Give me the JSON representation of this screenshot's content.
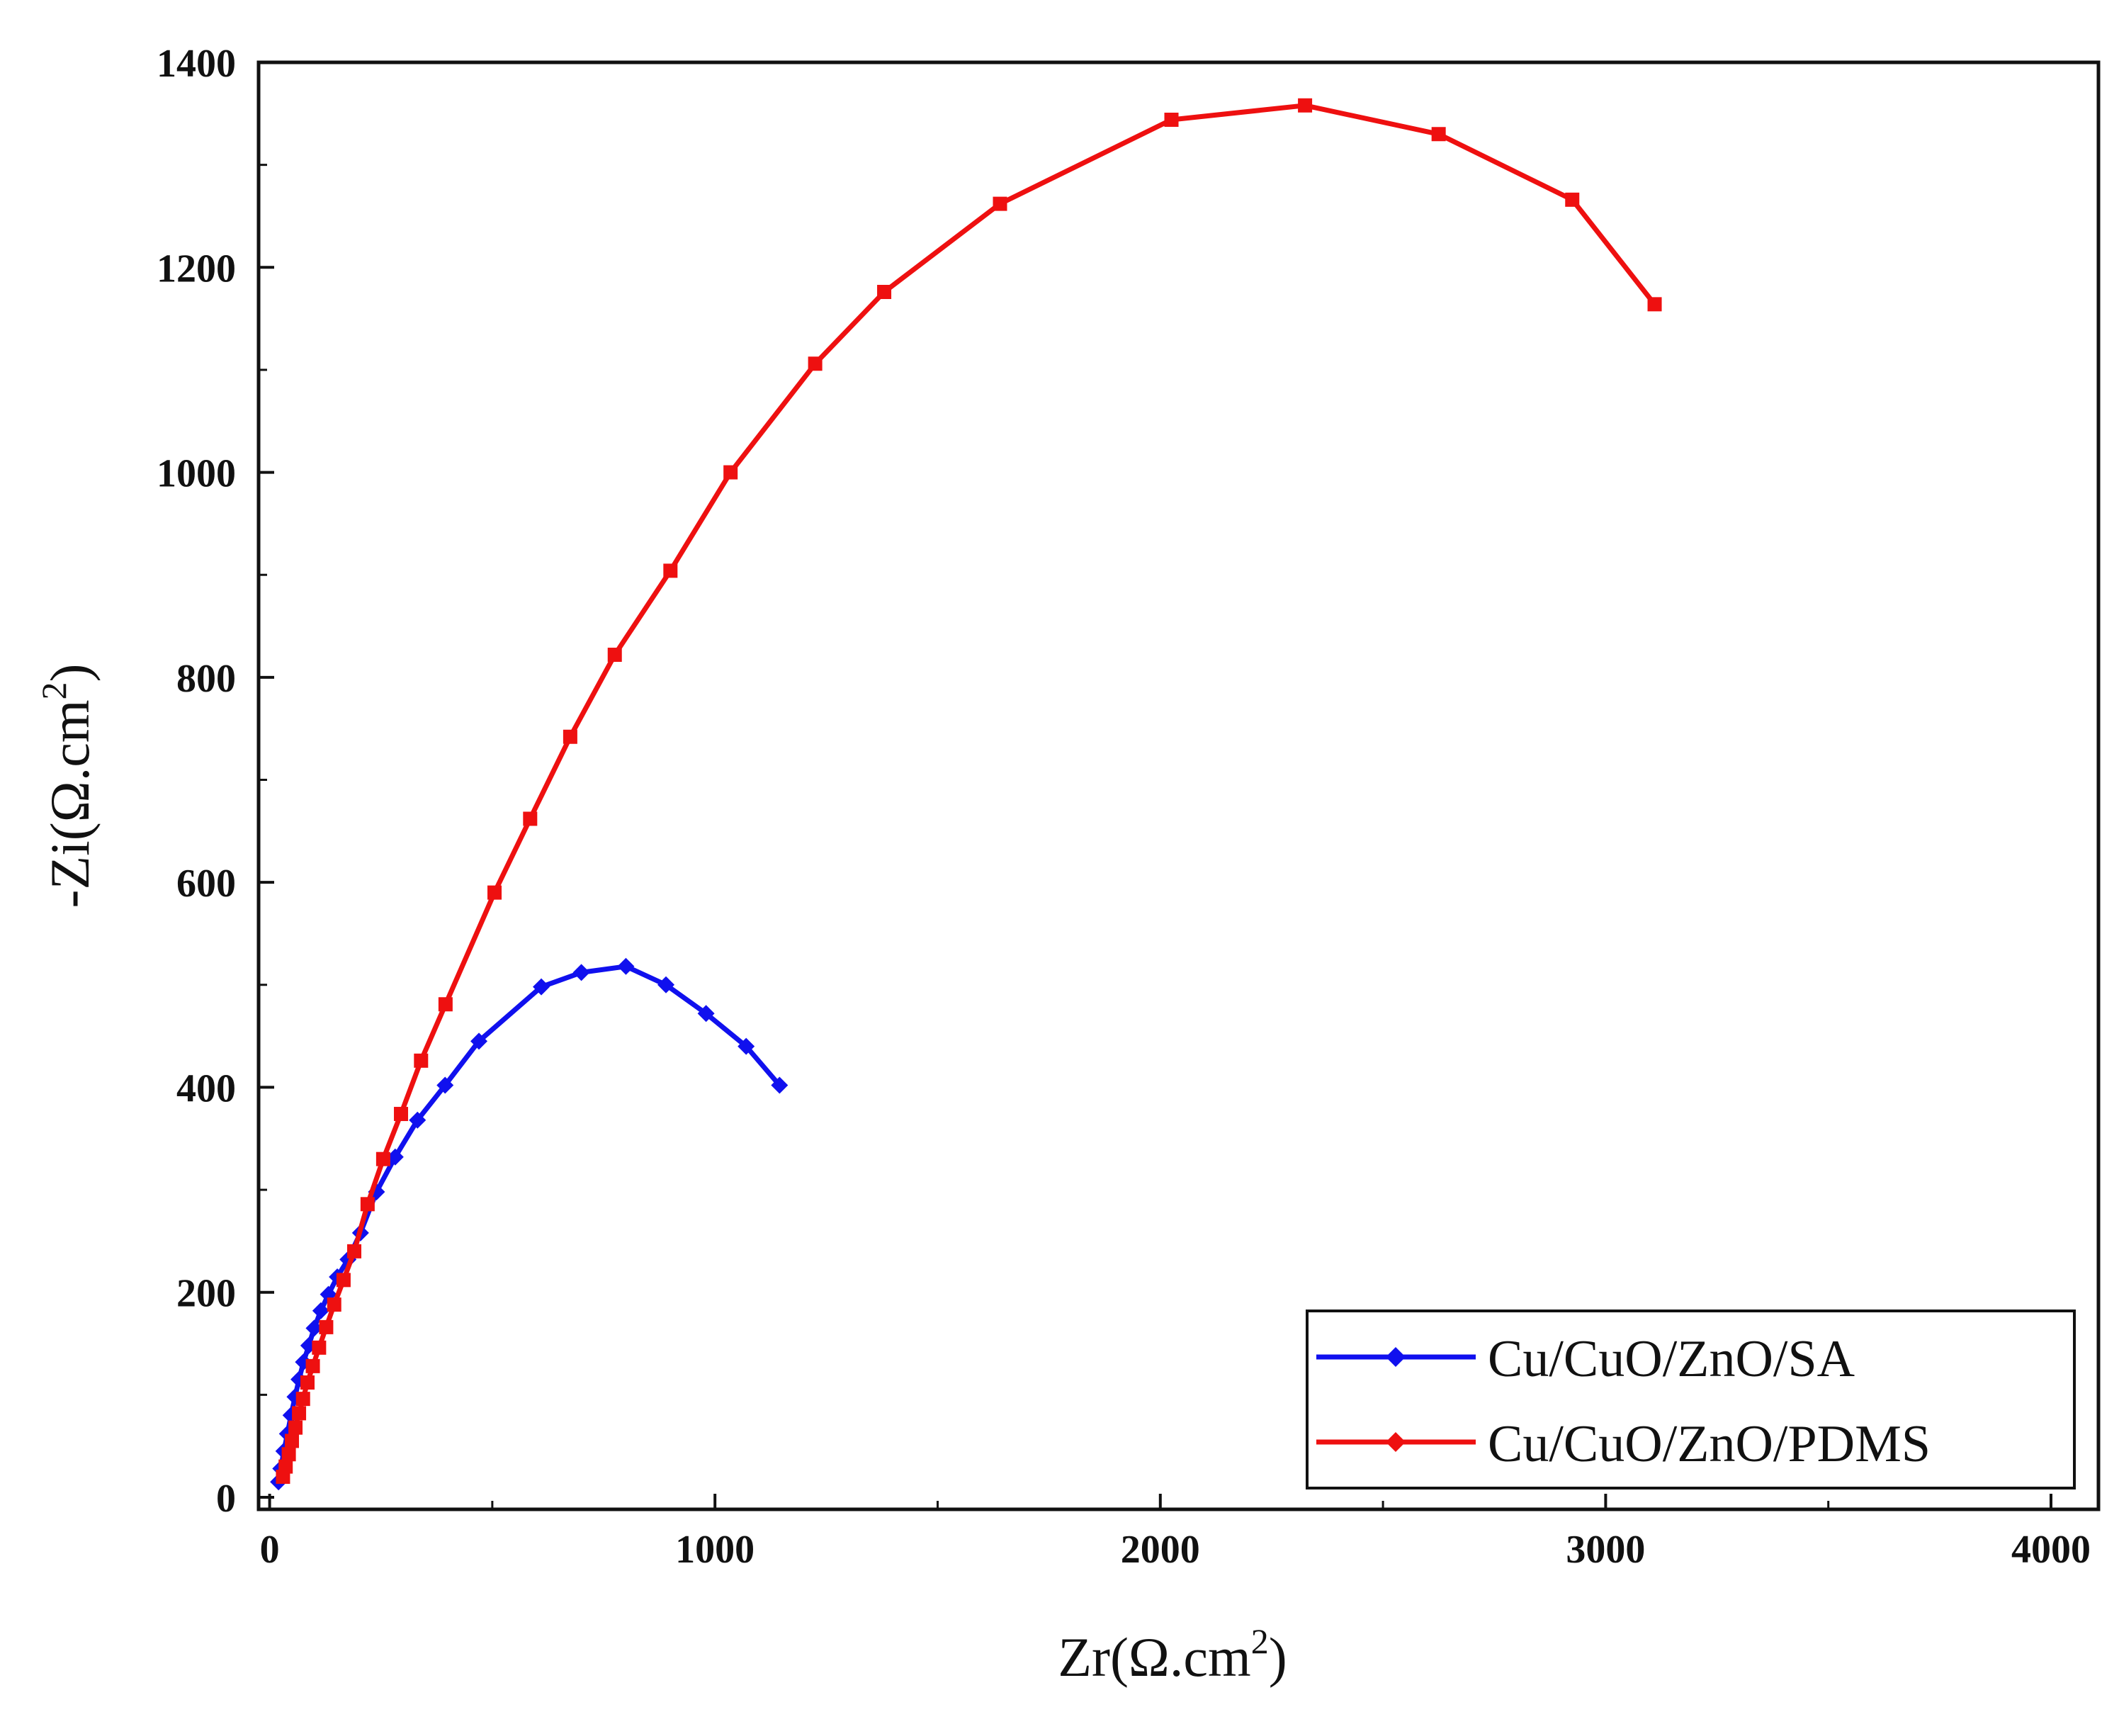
{
  "chart_data": {
    "type": "line",
    "title": "",
    "xlabel_main": "Zr(Ω.cm",
    "xlabel_sup": "2",
    "xlabel_end": ")",
    "ylabel_main": "-Zi(Ω.cm",
    "ylabel_sup": "2",
    "ylabel_end": ")",
    "xlim": [
      0,
      4000
    ],
    "ylim": [
      0,
      1400
    ],
    "xticks": [
      0,
      1000,
      2000,
      3000,
      4000
    ],
    "yticks": [
      0,
      200,
      400,
      600,
      800,
      1000,
      1200,
      1400
    ],
    "xtick_labels": [
      "0",
      "1000",
      "2000",
      "3000",
      "4000"
    ],
    "ytick_labels": [
      "0",
      "200",
      "400",
      "600",
      "800",
      "1000",
      "1200",
      "1400"
    ],
    "legend_position": "bottom-right",
    "series": [
      {
        "name": "Cu/CuO/ZnO/SA",
        "color": "#1010ee",
        "x": [
          20,
          25,
          32,
          40,
          48,
          57,
          66,
          76,
          88,
          100,
          115,
          132,
          152,
          176,
          204,
          240,
          282,
          332,
          394,
          470,
          610,
          700,
          800,
          890,
          980,
          1070,
          1145
        ],
        "y": [
          15,
          28,
          45,
          62,
          80,
          98,
          115,
          132,
          148,
          165,
          182,
          198,
          215,
          232,
          258,
          298,
          332,
          368,
          402,
          445,
          498,
          512,
          518,
          500,
          472,
          440,
          402
        ]
      },
      {
        "name": "Cu/CuO/ZnO/PDMS",
        "color": "#ee1010",
        "x": [
          30,
          36,
          43,
          50,
          58,
          66,
          75,
          85,
          97,
          111,
          127,
          145,
          166,
          190,
          220,
          255,
          295,
          340,
          395,
          505,
          585,
          675,
          775,
          900,
          1035,
          1225,
          1380,
          1640,
          2025,
          2325,
          2625,
          2925,
          3110
        ],
        "y": [
          20,
          30,
          42,
          55,
          68,
          82,
          96,
          112,
          128,
          146,
          166,
          188,
          212,
          240,
          286,
          330,
          374,
          426,
          481,
          590,
          662,
          742,
          822,
          904,
          1000,
          1106,
          1176,
          1262,
          1344,
          1358,
          1330,
          1266,
          1164
        ]
      }
    ]
  }
}
